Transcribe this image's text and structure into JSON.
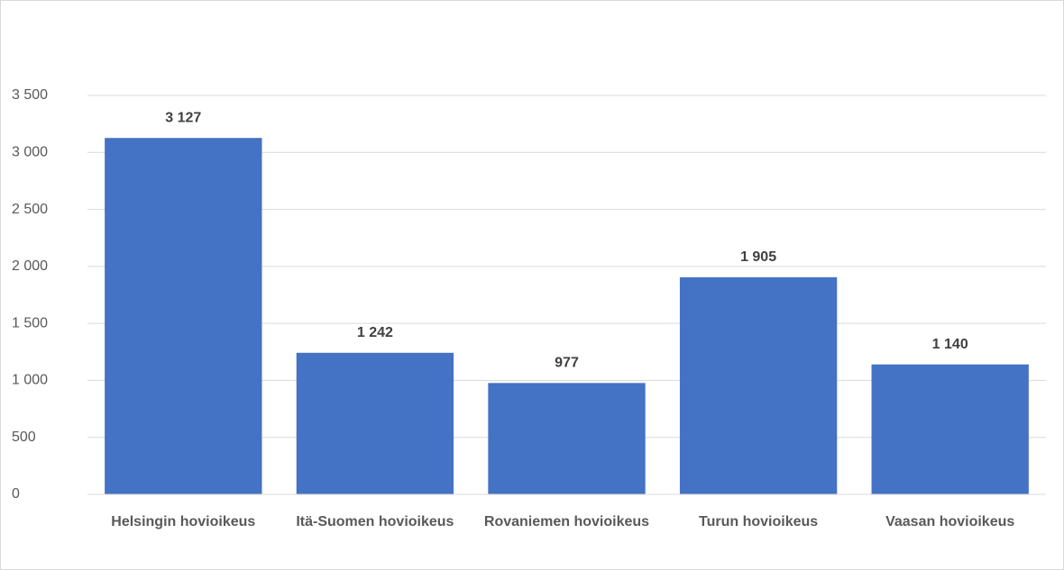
{
  "chart_data": {
    "type": "bar",
    "categories": [
      "Helsingin hovioikeus",
      "Itä-Suomen hovioikeus",
      "Rovaniemen hovioikeus",
      "Turun hovioikeus",
      "Vaasan hovioikeus"
    ],
    "values": [
      3127,
      1242,
      977,
      1905,
      1140
    ],
    "value_labels": [
      "3 127",
      "1 242",
      "977",
      "1 905",
      "1 140"
    ],
    "color": "#4472c4",
    "ylim": [
      0,
      3500
    ],
    "yticks": [
      0,
      500,
      {
        "value": 1000,
        "label": "1 000"
      },
      {
        "value": 1500,
        "label": "1 500"
      },
      {
        "value": 2000,
        "label": "2 000"
      },
      {
        "value": 2500,
        "label": "2 500"
      },
      {
        "value": 3000,
        "label": "3 000"
      },
      {
        "value": 3500,
        "label": "3 500"
      }
    ],
    "grid": true
  }
}
